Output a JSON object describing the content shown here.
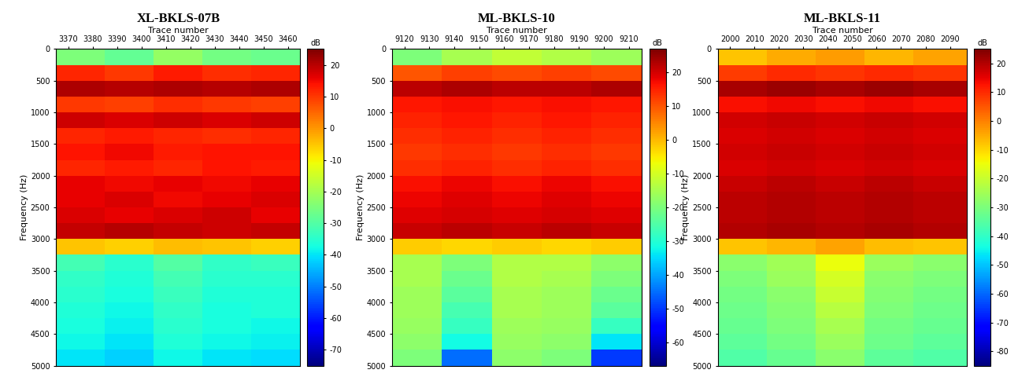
{
  "chart_data": [
    {
      "type": "heatmap",
      "title": "XL-BKLS-07B",
      "x_label": "Trace number",
      "y_label": "Frequency (Hz)",
      "color": "jet",
      "x_edges": [
        3365,
        3385,
        3405,
        3425,
        3445,
        3465
      ],
      "y_edges": [
        0,
        250,
        500,
        750,
        1000,
        1250,
        1500,
        1750,
        2000,
        2250,
        2500,
        2750,
        3000,
        3250,
        3500,
        3750,
        4000,
        4250,
        4500,
        4750,
        5000
      ],
      "cells": [
        [
          -25,
          -28,
          -22,
          -26,
          -27
        ],
        [
          12,
          10,
          13,
          11,
          12
        ],
        [
          21,
          20,
          21,
          20,
          21
        ],
        [
          10,
          9,
          11,
          10,
          9
        ],
        [
          18,
          17,
          18,
          17,
          18
        ],
        [
          12,
          13,
          12,
          11,
          12
        ],
        [
          14,
          15,
          13,
          14,
          14
        ],
        [
          12,
          13,
          12,
          14,
          13
        ],
        [
          16,
          15,
          16,
          15,
          16
        ],
        [
          16,
          17,
          15,
          16,
          17
        ],
        [
          17,
          16,
          17,
          18,
          16
        ],
        [
          19,
          20,
          19,
          18,
          19
        ],
        [
          -5,
          -6,
          -4,
          -5,
          -6
        ],
        [
          -32,
          -35,
          -30,
          -34,
          -33
        ],
        [
          -34,
          -36,
          -32,
          -35,
          -35
        ],
        [
          -35,
          -37,
          -33,
          -36,
          -36
        ],
        [
          -36,
          -38,
          -34,
          -37,
          -36
        ],
        [
          -37,
          -39,
          -35,
          -37,
          -38
        ],
        [
          -38,
          -40,
          -36,
          -38,
          -39
        ],
        [
          -40,
          -42,
          -38,
          -40,
          -41
        ]
      ],
      "xlim": [
        3365,
        3465
      ],
      "xticks": [
        3370,
        3380,
        3390,
        3400,
        3410,
        3420,
        3430,
        3440,
        3450,
        3460
      ],
      "ylim": [
        5000,
        0
      ],
      "yticks": [
        0,
        500,
        1000,
        1500,
        2000,
        2500,
        3000,
        3500,
        4000,
        4500,
        5000
      ],
      "colorbar": {
        "label": "dB",
        "range": [
          -75,
          25
        ],
        "ticks": [
          -70,
          -60,
          -50,
          -40,
          -30,
          -20,
          -10,
          0,
          10,
          20
        ]
      }
    },
    {
      "type": "heatmap",
      "title": "ML-BKLS-10",
      "x_label": "Trace number",
      "y_label": "Frequency (Hz)",
      "color": "jet",
      "x_edges": [
        9115,
        9135,
        9155,
        9175,
        9195,
        9215
      ],
      "y_edges": [
        0,
        250,
        500,
        750,
        1000,
        1250,
        1500,
        1750,
        2000,
        2250,
        2500,
        2750,
        3000,
        3250,
        3500,
        3750,
        4000,
        4250,
        4500,
        4750,
        5000
      ],
      "cells": [
        [
          -20,
          -15,
          -12,
          -14,
          -16
        ],
        [
          10,
          12,
          11,
          12,
          11
        ],
        [
          22,
          23,
          22,
          22,
          23
        ],
        [
          16,
          17,
          16,
          17,
          16
        ],
        [
          15,
          16,
          15,
          16,
          15
        ],
        [
          14,
          15,
          14,
          15,
          14
        ],
        [
          13,
          14,
          13,
          14,
          13
        ],
        [
          14,
          15,
          14,
          15,
          14
        ],
        [
          17,
          18,
          17,
          18,
          17
        ],
        [
          18,
          19,
          18,
          19,
          18
        ],
        [
          19,
          20,
          19,
          20,
          19
        ],
        [
          21,
          22,
          21,
          22,
          21
        ],
        [
          -2,
          -3,
          -2,
          -3,
          -2
        ],
        [
          -15,
          -20,
          -14,
          -14,
          -18
        ],
        [
          -15,
          -22,
          -14,
          -15,
          -20
        ],
        [
          -16,
          -24,
          -15,
          -16,
          -22
        ],
        [
          -16,
          -26,
          -15,
          -16,
          -24
        ],
        [
          -17,
          -28,
          -16,
          -17,
          -28
        ],
        [
          -18,
          -32,
          -17,
          -18,
          -34
        ],
        [
          -20,
          -45,
          -18,
          -20,
          -50
        ]
      ],
      "xlim": [
        9115,
        9215
      ],
      "xticks": [
        9120,
        9130,
        9140,
        9150,
        9160,
        9170,
        9180,
        9190,
        9200,
        9210
      ],
      "ylim": [
        5000,
        0
      ],
      "yticks": [
        0,
        500,
        1000,
        1500,
        2000,
        2500,
        3000,
        3500,
        4000,
        4500,
        5000
      ],
      "colorbar": {
        "label": "dB",
        "range": [
          -67,
          27
        ],
        "ticks": [
          -60,
          -50,
          -40,
          -30,
          -20,
          -10,
          0,
          10,
          20
        ]
      }
    },
    {
      "type": "heatmap",
      "title": "ML-BKLS-11",
      "x_label": "Trace number",
      "y_label": "Frequency (Hz)",
      "color": "jet",
      "x_edges": [
        1995,
        2015,
        2035,
        2055,
        2075,
        2097
      ],
      "y_edges": [
        0,
        250,
        500,
        750,
        1000,
        1250,
        1500,
        1750,
        2000,
        2250,
        2500,
        2750,
        3000,
        3250,
        3500,
        3750,
        4000,
        4250,
        4500,
        4750,
        5000
      ],
      "cells": [
        [
          -8,
          -5,
          -3,
          -6,
          -4
        ],
        [
          8,
          10,
          9,
          10,
          9
        ],
        [
          21,
          22,
          21,
          22,
          21
        ],
        [
          13,
          14,
          13,
          14,
          13
        ],
        [
          17,
          18,
          17,
          18,
          17
        ],
        [
          16,
          17,
          16,
          17,
          16
        ],
        [
          17,
          18,
          17,
          18,
          17
        ],
        [
          16,
          17,
          16,
          17,
          16
        ],
        [
          18,
          19,
          18,
          19,
          18
        ],
        [
          19,
          20,
          19,
          20,
          19
        ],
        [
          19,
          20,
          19,
          20,
          19
        ],
        [
          20,
          21,
          20,
          21,
          20
        ],
        [
          -8,
          -6,
          -4,
          -7,
          -8
        ],
        [
          -28,
          -25,
          -15,
          -26,
          -28
        ],
        [
          -30,
          -26,
          -18,
          -28,
          -30
        ],
        [
          -31,
          -28,
          -20,
          -29,
          -31
        ],
        [
          -32,
          -29,
          -22,
          -30,
          -32
        ],
        [
          -33,
          -30,
          -24,
          -31,
          -33
        ],
        [
          -34,
          -31,
          -26,
          -32,
          -34
        ],
        [
          -36,
          -33,
          -28,
          -34,
          -36
        ]
      ],
      "xlim": [
        1995,
        2097
      ],
      "xticks": [
        2000,
        2010,
        2020,
        2030,
        2040,
        2050,
        2060,
        2070,
        2080,
        2090
      ],
      "ylim": [
        5000,
        0
      ],
      "yticks": [
        0,
        500,
        1000,
        1500,
        2000,
        2500,
        3000,
        3500,
        4000,
        4500,
        5000
      ],
      "colorbar": {
        "label": "dB",
        "range": [
          -85,
          25
        ],
        "ticks": [
          -80,
          -70,
          -60,
          -50,
          -40,
          -30,
          -20,
          -10,
          0,
          10,
          20
        ]
      }
    }
  ]
}
